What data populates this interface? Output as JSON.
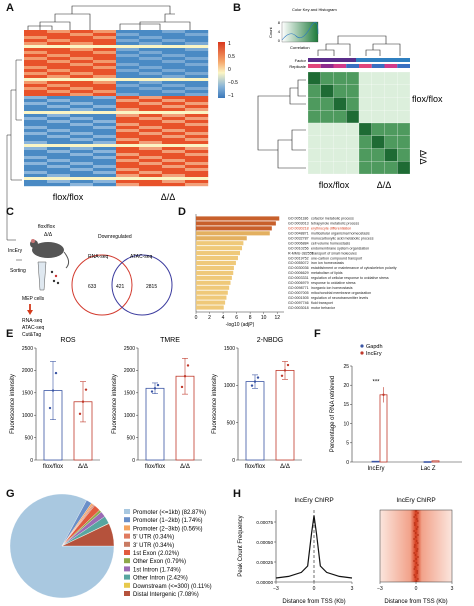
{
  "panels": {
    "A": "A",
    "B": "B",
    "C": "C",
    "D": "D",
    "E": "E",
    "F": "F",
    "G": "G",
    "H": "H"
  },
  "panelA": {
    "col_labels": [
      "flox/flox",
      "Δ/Δ"
    ],
    "colorbar_ticks": [
      "1",
      "0.5",
      "0",
      "−0.5",
      "−1"
    ],
    "colors": {
      "high": "#e8522a",
      "mid": "#fbf5c4",
      "low": "#4a8ac4"
    }
  },
  "panelB": {
    "key_title": "Color Key and Histogram",
    "key_y": "Count",
    "key_yticks": [
      "0",
      "4",
      "8"
    ],
    "key_xlabel": "Correlation",
    "factor_label": "Factor",
    "replicate_label": "Replicate",
    "row_labels": [
      "flox/flox",
      "Δ/Δ"
    ],
    "col_labels": [
      "flox/flox",
      "Δ/Δ"
    ]
  },
  "panelC": {
    "labels": {
      "flox": "flox/flox",
      "dd": "Δ/Δ",
      "mouse": "IncEry",
      "sorting": "Sorting",
      "cells": "MEP cells",
      "assays": [
        "RNA-seq",
        "ATAC-seq",
        "Cut&Tag"
      ],
      "downregulated": "Downregulated"
    },
    "venn": {
      "left_label": "RNA-seq",
      "right_label": "ATAC-seq",
      "left_only": "633",
      "both": "421",
      "right_only": "2815"
    }
  },
  "chart_data": [
    {
      "type": "bar",
      "panel": "D",
      "categories": [
        "GO:0051186",
        "GO:0003013",
        "GO:0030218",
        "GO:0048871",
        "GO:0032787",
        "GO:0006884",
        "GO:0010256",
        "R-MMU-382551",
        "GO:0019752",
        "GO:0055072",
        "GO:0030036",
        "GO:0006629",
        "GO:0003331",
        "GO:0006979",
        "GO:0098771",
        "GO:0007005",
        "GO:0001505",
        "GO:0097746",
        "GO:0003018"
      ],
      "terms": [
        "cofactor metabolic process",
        "tetrapyrrole metabolic process",
        "erythrocyte differentiation",
        "multicellular organismal homeostasis",
        "monocarboxylic acid metabolic process",
        "cell volume homeostasis",
        "endomembrane system organization",
        "Transport of small molecules",
        "one-carbon compound transport",
        "iron ion homeostasis",
        "establishment or maintenance of cytoskeleton polarity",
        "metabolism of lipids",
        "regulation of cellular response to oxidative stress",
        "response to oxidative stress",
        "inorganic ion homeostasis",
        "mitochondrial membrane organization",
        "regulation of neurotransmitter levels",
        "fluid transport",
        "motor behavior"
      ],
      "values": [
        12.3,
        11.8,
        11.2,
        10.9,
        7.5,
        7.0,
        6.8,
        6.5,
        6.2,
        5.9,
        5.6,
        5.5,
        5.3,
        5.1,
        4.9,
        4.7,
        4.5,
        4.3,
        4.1
      ],
      "xlabel": "-log10 (adjP)",
      "xticks": [
        "0",
        "2",
        "4",
        "6",
        "8",
        "10",
        "12"
      ],
      "xlim": [
        0,
        13
      ]
    },
    {
      "type": "bar",
      "panel": "E",
      "title": "ROS",
      "categories": [
        "flox/flox",
        "Δ/Δ"
      ],
      "values": [
        1550,
        1300
      ],
      "errors": [
        650,
        450
      ],
      "ylabel": "Fluorescence intensity",
      "yticks": [
        "0",
        "500",
        "1000",
        "1500",
        "2000",
        "2500"
      ],
      "ylim": [
        0,
        2500
      ]
    },
    {
      "type": "bar",
      "panel": "E",
      "title": "TMRE",
      "categories": [
        "flox/flox",
        "Δ/Δ"
      ],
      "values": [
        1600,
        1870
      ],
      "errors": [
        120,
        400
      ],
      "ylabel": "Fluorescence intensity",
      "yticks": [
        "0",
        "500",
        "1000",
        "1500",
        "2000",
        "2500"
      ],
      "ylim": [
        0,
        2500
      ]
    },
    {
      "type": "bar",
      "panel": "E",
      "title": "2-NBDG",
      "categories": [
        "flox/flox",
        "Δ/Δ"
      ],
      "values": [
        1050,
        1200
      ],
      "errors": [
        90,
        120
      ],
      "ylabel": "Fluorescence intensity",
      "yticks": [
        "0",
        "500",
        "1000",
        "1500"
      ],
      "ylim": [
        0,
        1500
      ]
    },
    {
      "type": "bar",
      "panel": "F",
      "categories": [
        "IncEry",
        "Lac Z"
      ],
      "series": [
        {
          "name": "Gapdh",
          "values": [
            0.2,
            0.1
          ]
        },
        {
          "name": "IncEry",
          "values": [
            17.5,
            0.3
          ]
        }
      ],
      "ylabel": "Percentage of RNA retrieved",
      "yticks": [
        "0",
        "5",
        "10",
        "15",
        "20",
        "25"
      ],
      "ylim": [
        0,
        25
      ],
      "annotation": "***"
    },
    {
      "type": "pie",
      "panel": "G",
      "labels": [
        "Promoter (<=1kb) (82.87%)",
        "Promoter (1−2kb) (1.74%)",
        "Promoter (2−3kb) (0.56%)",
        "5' UTR (0.34%)",
        "3' UTR (0.34%)",
        "1st Exon (2.02%)",
        "Other Exon (0.79%)",
        "1st Intron (1.74%)",
        "Other Intron (2.42%)",
        "Downstream (<=300) (0.11%)",
        "Distal Intergenic (7.08%)"
      ],
      "values": [
        82.87,
        1.74,
        0.56,
        0.34,
        0.34,
        2.02,
        0.79,
        1.74,
        2.42,
        0.11,
        7.08
      ],
      "colors": [
        "#a9c8e0",
        "#6a8fc8",
        "#f4a460",
        "#e07a5f",
        "#c97b63",
        "#e25a3e",
        "#8ea84a",
        "#9b6bb5",
        "#58a6a0",
        "#e7c94c",
        "#b5523c"
      ]
    },
    {
      "type": "line",
      "panel": "H",
      "title": "IncEry ChIRP",
      "xlabel": "Distance from TSS (Kb)",
      "ylabel": "Peak Count Frequency",
      "xticks": [
        "−3",
        "0",
        "3"
      ],
      "yticks": [
        "0.00000",
        "0.00025",
        "0.00050",
        "0.00075"
      ],
      "xlim": [
        -3,
        3
      ],
      "ylim": [
        0,
        0.0009
      ],
      "x": [
        -3,
        -2,
        -1,
        -0.5,
        -0.2,
        0,
        0.2,
        0.5,
        1,
        2,
        3
      ],
      "y": [
        5e-05,
        7e-05,
        0.00012,
        0.0002,
        0.0006,
        0.00083,
        0.0006,
        0.0002,
        0.00012,
        7e-05,
        5e-05
      ]
    },
    {
      "type": "heatmap",
      "panel": "H",
      "title": "IncEry ChIRP",
      "xlabel": "Distance from TSS (Kb)",
      "xticks": [
        "−3",
        "0",
        "3"
      ]
    }
  ]
}
